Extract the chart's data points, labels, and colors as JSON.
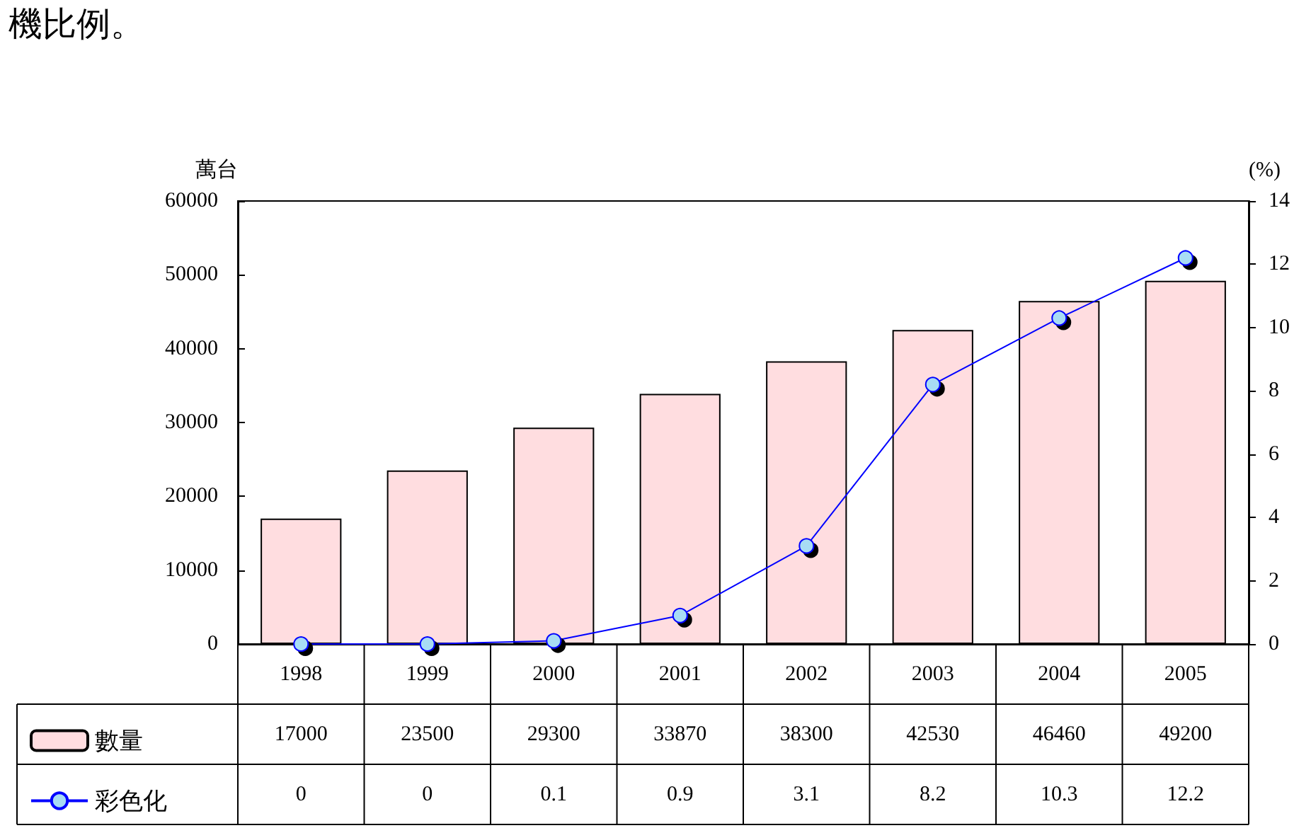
{
  "chart_data": {
    "type": "bar",
    "annotations": [
      "機比例。"
    ],
    "ylabel": "萬台",
    "y2label": "(%)",
    "categories": [
      "1998",
      "1999",
      "2000",
      "2001",
      "2002",
      "2003",
      "2004",
      "2005"
    ],
    "series": [
      {
        "name": "數量",
        "color": "#ffdde0",
        "values": [
          17000,
          23500,
          29300,
          33870,
          38300,
          42530,
          46460,
          49200
        ]
      },
      {
        "name": "彩色化",
        "type": "line",
        "axis": "y2",
        "color": "#0000ff",
        "marker": "circle",
        "values": [
          0,
          0,
          0.1,
          0.9,
          3.1,
          8.2,
          10.3,
          12.2
        ]
      }
    ],
    "ylim": [
      0,
      60000
    ],
    "yticks": [
      0,
      10000,
      20000,
      30000,
      40000,
      50000,
      60000
    ],
    "y2lim": [
      0,
      14
    ],
    "y2ticks": [
      0,
      2,
      4,
      6,
      8,
      10,
      12,
      14
    ],
    "grid": false,
    "legend": "bottom left",
    "data_labels": true
  }
}
